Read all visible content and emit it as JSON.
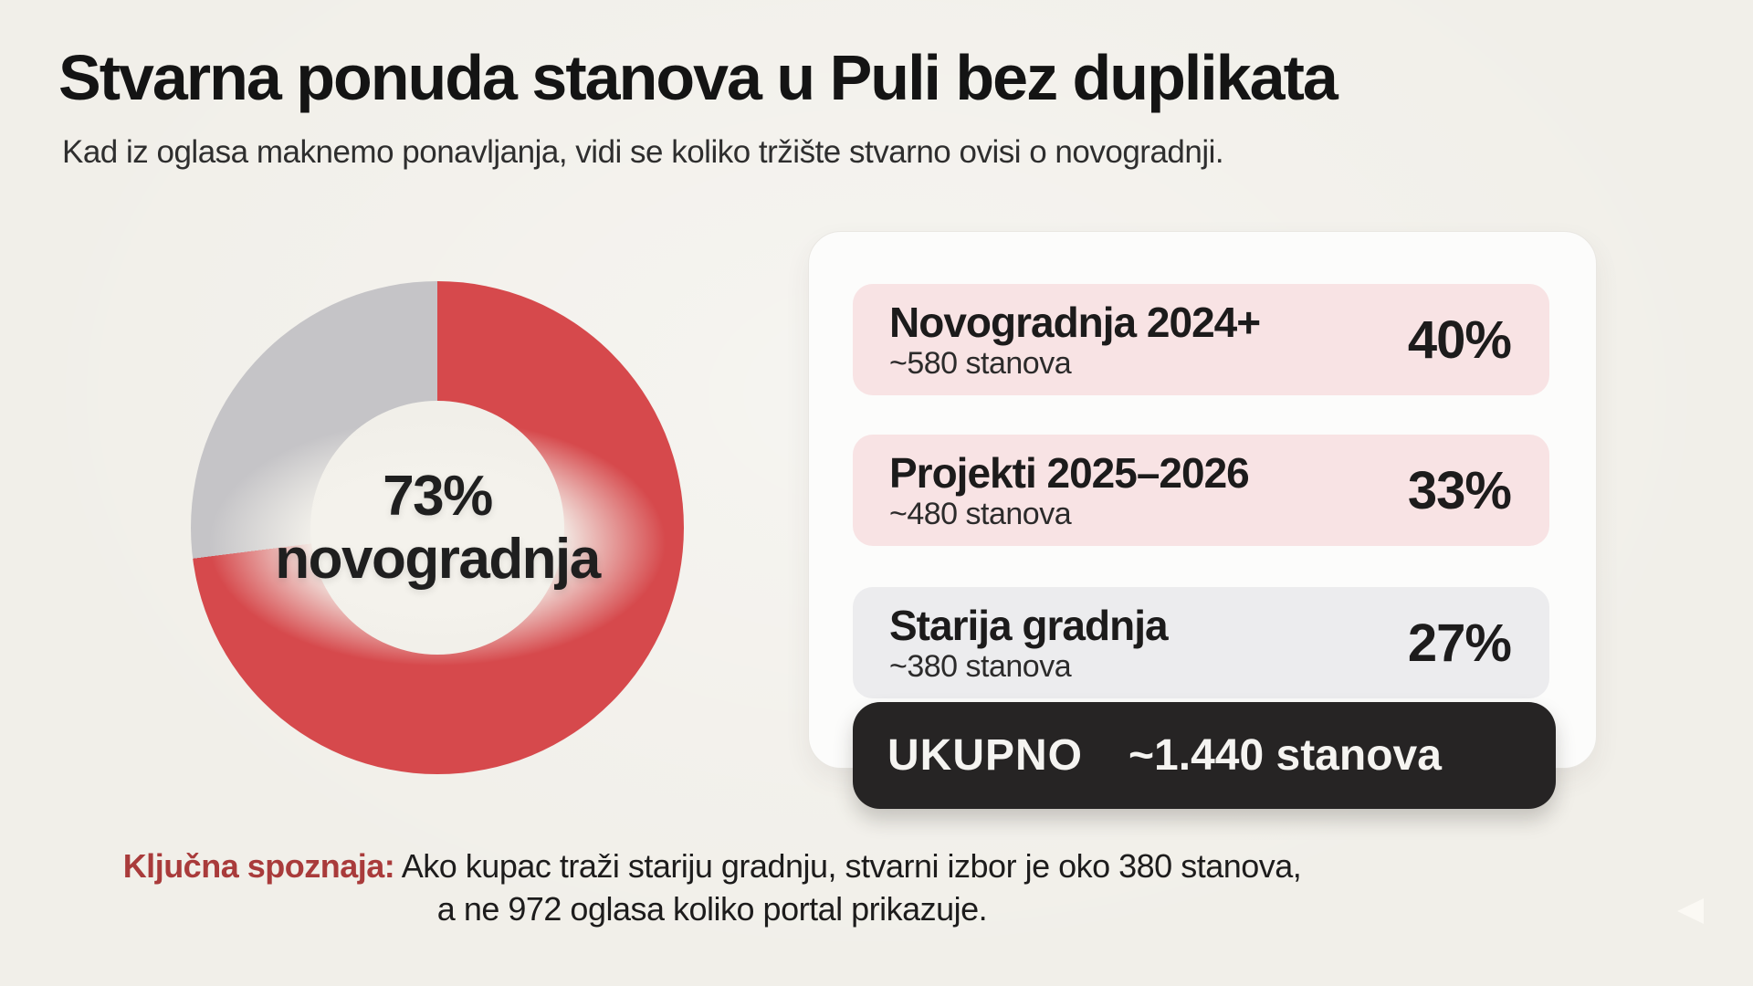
{
  "colors": {
    "background": "#f1efe9",
    "accent_red": "#d6494c",
    "slice_gray": "#c5c4c7",
    "row_pink": "#f8e3e4",
    "row_gray": "#ececee",
    "total_bar_bg": "#262424",
    "card_bg": "#fcfcfb",
    "title_color": "#141414",
    "footnote_red": "#a93b3b"
  },
  "header": {
    "title": "Stvarna ponuda stanova u Puli bez duplikata",
    "subtitle": "Kad iz oglasa maknemo ponavljanja, vidi se koliko tržište stvarno ovisi o novogradnji."
  },
  "donut": {
    "value_label": "73%",
    "category_label": "novogradnja"
  },
  "card": {
    "rows": [
      {
        "label": "Novogradnja 2024+",
        "sublabel": "~580 stanova",
        "percent": "40%"
      },
      {
        "label": "Projekti 2025–2026",
        "sublabel": "~480 stanova",
        "percent": "33%"
      },
      {
        "label": "Starija gradnja",
        "sublabel": "~380 stanova",
        "percent": "27%"
      }
    ],
    "total": {
      "label": "UKUPNO",
      "value": "~1.440 stanova"
    }
  },
  "footnote": {
    "lead": "Ključna spoznaja:",
    "line1": "Ako kupac traži stariju gradnju, stvarni izbor je oko 380 stanova,",
    "line2": "a ne 972 oglasa koliko portal prikazuje."
  },
  "chart_data": {
    "type": "pie",
    "subtype": "donut",
    "title": "Stvarna ponuda stanova u Puli bez duplikata",
    "subtitle": "Kad iz oglasa maknemo ponavljanja, vidi se koliko tržište stvarno ovisi o novogradnji.",
    "center_label": "73% novogradnja",
    "start_angle_deg": 0,
    "direction": "clockwise",
    "slices": [
      {
        "label": "Novogradnja (2024+ i projekti 2025–2026)",
        "value": 73,
        "color": "#d6494c"
      },
      {
        "label": "Starija gradnja",
        "value": 27,
        "color": "#c5c4c7"
      }
    ],
    "breakdown": [
      {
        "label": "Novogradnja 2024+",
        "units": "~580 stanova",
        "percent": 40
      },
      {
        "label": "Projekti 2025–2026",
        "units": "~480 stanova",
        "percent": 33
      },
      {
        "label": "Starija gradnja",
        "units": "~380 stanova",
        "percent": 27
      }
    ],
    "total": {
      "label": "UKUPNO",
      "value": "~1.440 stanova"
    },
    "legend_position": "right-card",
    "grid": false
  }
}
